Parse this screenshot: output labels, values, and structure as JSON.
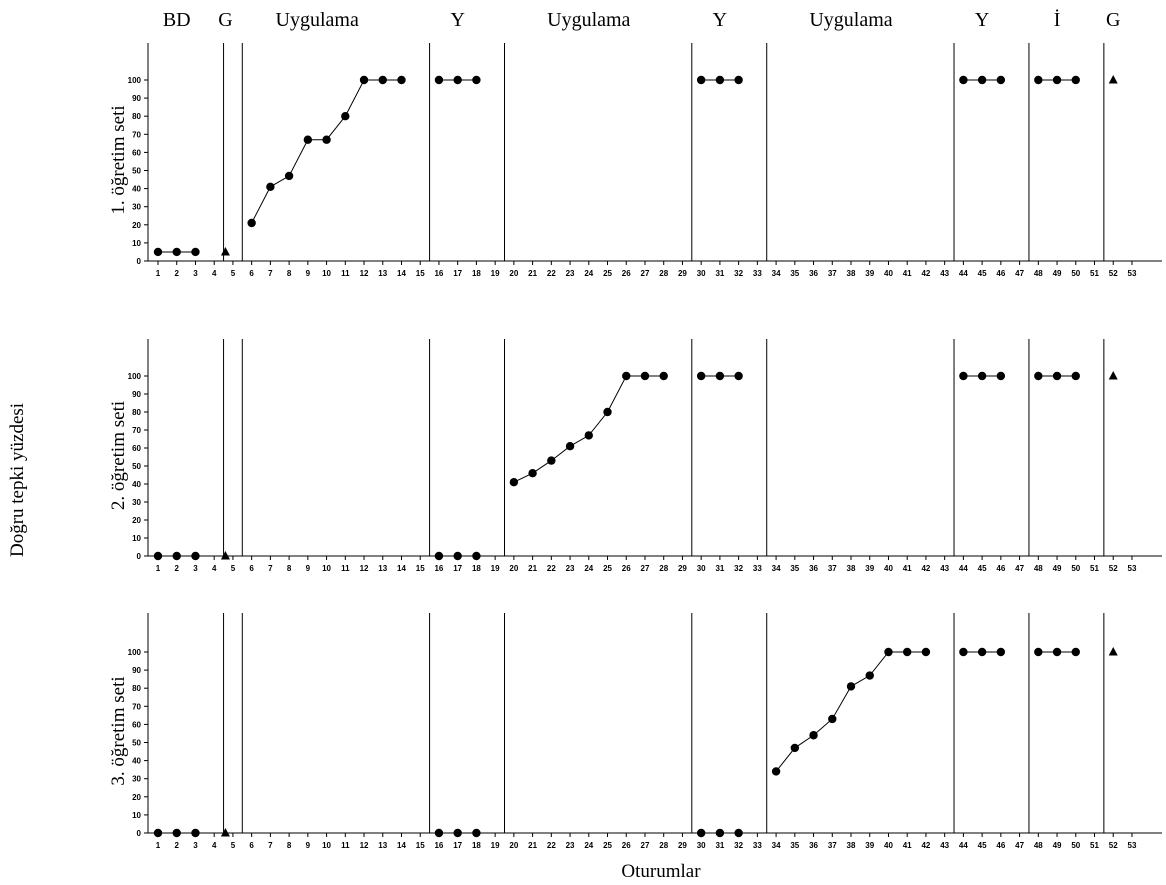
{
  "chart_data": {
    "type": "line",
    "xlabel": "Oturumlar",
    "ylabel": "Doğru tepki yüzdesi",
    "x_range": [
      1,
      53
    ],
    "x_ticks": [
      1,
      2,
      3,
      4,
      5,
      6,
      7,
      8,
      9,
      10,
      11,
      12,
      13,
      14,
      15,
      16,
      17,
      18,
      19,
      20,
      21,
      22,
      23,
      24,
      25,
      26,
      27,
      28,
      29,
      30,
      31,
      32,
      33,
      34,
      35,
      36,
      37,
      38,
      39,
      40,
      41,
      42,
      43,
      44,
      45,
      46,
      47,
      48,
      49,
      50,
      51,
      52,
      53
    ],
    "y_range": [
      0,
      100
    ],
    "y_ticks": [
      0,
      10,
      20,
      30,
      40,
      50,
      60,
      70,
      80,
      90,
      100
    ],
    "grid": false,
    "phase_labels": [
      {
        "text": "BD",
        "at": 2
      },
      {
        "text": "G",
        "at": 4.6
      },
      {
        "text": "Uygulama",
        "at": 9.5
      },
      {
        "text": "Y",
        "at": 17
      },
      {
        "text": "Uygulama",
        "at": 24
      },
      {
        "text": "Y",
        "at": 31
      },
      {
        "text": "Uygulama",
        "at": 38
      },
      {
        "text": "Y",
        "at": 45
      },
      {
        "text": "İ",
        "at": 49
      },
      {
        "text": "G",
        "at": 52
      }
    ],
    "phase_lines": [
      4,
      5,
      15,
      19,
      29,
      33,
      43,
      47,
      51
    ],
    "panels": [
      {
        "label": "1. öğretim seti",
        "circle_segments": [
          {
            "x": [
              1,
              2,
              3
            ],
            "y": [
              5,
              5,
              5
            ]
          },
          {
            "x": [
              6,
              7,
              8,
              9,
              10,
              11,
              12,
              13,
              14
            ],
            "y": [
              21,
              41,
              47,
              67,
              67,
              80,
              100,
              100,
              100
            ]
          },
          {
            "x": [
              16,
              17,
              18
            ],
            "y": [
              100,
              100,
              100
            ]
          },
          {
            "x": [
              30,
              31,
              32
            ],
            "y": [
              100,
              100,
              100
            ]
          },
          {
            "x": [
              44,
              45,
              46
            ],
            "y": [
              100,
              100,
              100
            ]
          },
          {
            "x": [
              48,
              49,
              50
            ],
            "y": [
              100,
              100,
              100
            ]
          }
        ],
        "triangles": [
          {
            "x": 4.6,
            "y": 5
          },
          {
            "x": 52,
            "y": 100
          }
        ]
      },
      {
        "label": "2. öğretim seti",
        "circle_segments": [
          {
            "x": [
              1,
              2,
              3
            ],
            "y": [
              0,
              0,
              0
            ]
          },
          {
            "x": [
              16,
              17,
              18
            ],
            "y": [
              0,
              0,
              0
            ]
          },
          {
            "x": [
              20,
              21,
              22,
              23,
              24,
              25,
              26,
              27,
              28
            ],
            "y": [
              41,
              46,
              53,
              61,
              67,
              80,
              100,
              100,
              100
            ]
          },
          {
            "x": [
              30,
              31,
              32
            ],
            "y": [
              100,
              100,
              100
            ]
          },
          {
            "x": [
              44,
              45,
              46
            ],
            "y": [
              100,
              100,
              100
            ]
          },
          {
            "x": [
              48,
              49,
              50
            ],
            "y": [
              100,
              100,
              100
            ]
          }
        ],
        "triangles": [
          {
            "x": 4.6,
            "y": 0
          },
          {
            "x": 52,
            "y": 100
          }
        ]
      },
      {
        "label": "3. öğretim seti",
        "circle_segments": [
          {
            "x": [
              1,
              2,
              3
            ],
            "y": [
              0,
              0,
              0
            ]
          },
          {
            "x": [
              16,
              17,
              18
            ],
            "y": [
              0,
              0,
              0
            ]
          },
          {
            "x": [
              30,
              31,
              32
            ],
            "y": [
              0,
              0,
              0
            ]
          },
          {
            "x": [
              34,
              35,
              36,
              37,
              38,
              39,
              40,
              41,
              42
            ],
            "y": [
              34,
              47,
              54,
              63,
              81,
              87,
              100,
              100,
              100
            ]
          },
          {
            "x": [
              44,
              45,
              46
            ],
            "y": [
              100,
              100,
              100
            ]
          },
          {
            "x": [
              48,
              49,
              50
            ],
            "y": [
              100,
              100,
              100
            ]
          }
        ],
        "triangles": [
          {
            "x": 4.6,
            "y": 0
          },
          {
            "x": 52,
            "y": 100
          }
        ]
      }
    ]
  }
}
